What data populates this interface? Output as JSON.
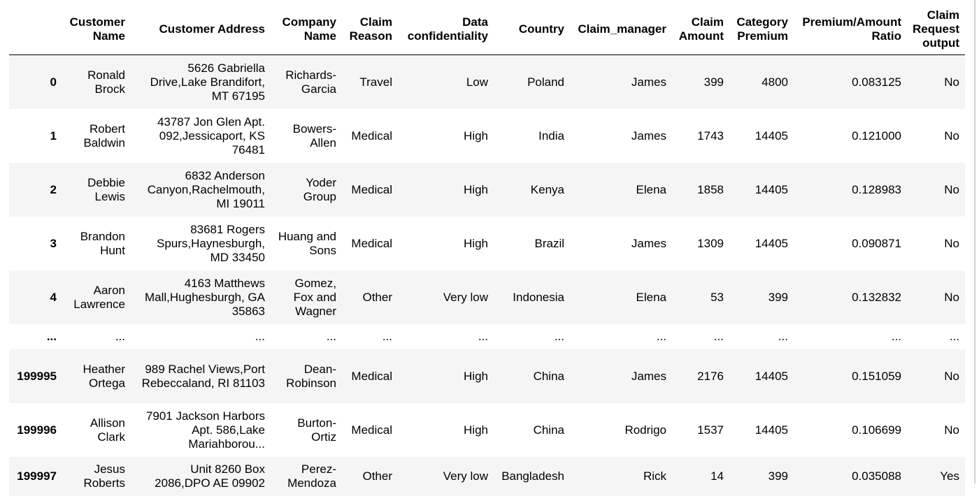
{
  "columns": [
    "",
    "Customer Name",
    "Customer Address",
    "Company Name",
    "Claim Reason",
    "Data confidentiality",
    "Country",
    "Claim_manager",
    "Claim Amount",
    "Category Premium",
    "Premium/Amount Ratio",
    "Claim Request output"
  ],
  "rows": [
    {
      "index": "0",
      "cells": [
        "Ronald Brock",
        "5626 Gabriella Drive,Lake Brandifort, MT 67195",
        "Richards-Garcia",
        "Travel",
        "Low",
        "Poland",
        "James",
        "399",
        "4800",
        "0.083125",
        "No"
      ]
    },
    {
      "index": "1",
      "cells": [
        "Robert Baldwin",
        "43787 Jon Glen Apt. 092,Jessicaport, KS 76481",
        "Bowers-Allen",
        "Medical",
        "High",
        "India",
        "James",
        "1743",
        "14405",
        "0.121000",
        "No"
      ]
    },
    {
      "index": "2",
      "cells": [
        "Debbie Lewis",
        "6832 Anderson Canyon,Rachelmouth, MI 19011",
        "Yoder Group",
        "Medical",
        "High",
        "Kenya",
        "Elena",
        "1858",
        "14405",
        "0.128983",
        "No"
      ]
    },
    {
      "index": "3",
      "cells": [
        "Brandon Hunt",
        "83681 Rogers Spurs,Haynesburgh, MD 33450",
        "Huang and Sons",
        "Medical",
        "High",
        "Brazil",
        "James",
        "1309",
        "14405",
        "0.090871",
        "No"
      ]
    },
    {
      "index": "4",
      "cells": [
        "Aaron Lawrence",
        "4163 Matthews Mall,Hughesburgh, GA 35863",
        "Gomez, Fox and Wagner",
        "Other",
        "Very low",
        "Indonesia",
        "Elena",
        "53",
        "399",
        "0.132832",
        "No"
      ]
    },
    {
      "index": "...",
      "cells": [
        "...",
        "...",
        "...",
        "...",
        "...",
        "...",
        "...",
        "...",
        "...",
        "...",
        "..."
      ]
    },
    {
      "index": "199995",
      "cells": [
        "Heather Ortega",
        "989 Rachel Views,Port Rebeccaland, RI 81103",
        "Dean-Robinson",
        "Medical",
        "High",
        "China",
        "James",
        "2176",
        "14405",
        "0.151059",
        "No"
      ]
    },
    {
      "index": "199996",
      "cells": [
        "Allison Clark",
        "7901 Jackson Harbors Apt. 586,Lake Mariahborou...",
        "Burton-Ortiz",
        "Medical",
        "High",
        "China",
        "Rodrigo",
        "1537",
        "14405",
        "0.106699",
        "No"
      ]
    },
    {
      "index": "199997",
      "cells": [
        "Jesus Roberts",
        "Unit 8260 Box 2086,DPO AE 09902",
        "Perez-Mendoza",
        "Other",
        "Very low",
        "Bangladesh",
        "Rick",
        "14",
        "399",
        "0.035088",
        "Yes"
      ]
    }
  ]
}
